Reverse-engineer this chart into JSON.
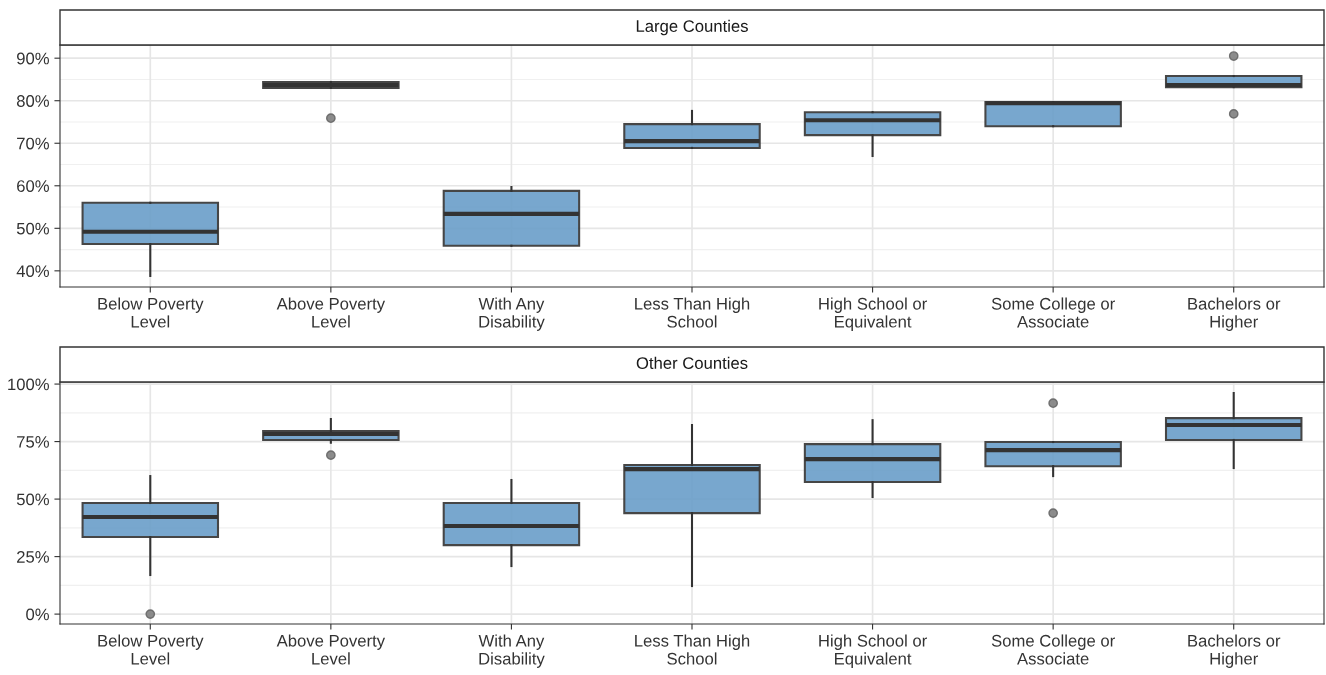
{
  "chart_data": [
    {
      "type": "box",
      "title": "Large Counties",
      "categories": [
        "Below Poverty\nLevel",
        "Above Poverty\nLevel",
        "With Any\nDisability",
        "Less Than High\nSchool",
        "High School or\nEquivalent",
        "Some College or\nAssociate",
        "Bachelors or\nHigher"
      ],
      "series": [
        {
          "color": "#6a9ec9",
          "boxes": [
            {
              "low": 38.8,
              "q1": 46.3,
              "median": 49.2,
              "q3": 56.0,
              "high": 56.0
            },
            {
              "low": 83.0,
              "q1": 83.0,
              "median": 83.7,
              "q3": 84.4,
              "high": 84.4,
              "outliers": [
                75.9
              ]
            },
            {
              "low": 45.9,
              "q1": 45.9,
              "median": 53.4,
              "q3": 58.8,
              "high": 59.7
            },
            {
              "low": 68.9,
              "q1": 68.9,
              "median": 70.5,
              "q3": 74.5,
              "high": 77.6
            },
            {
              "low": 67.0,
              "q1": 71.9,
              "median": 75.4,
              "q3": 77.3,
              "high": 77.3
            },
            {
              "low": 74.0,
              "q1": 74.0,
              "median": 79.4,
              "q3": 79.7,
              "high": 79.7
            },
            {
              "low": 83.2,
              "q1": 83.2,
              "median": 83.7,
              "q3": 85.8,
              "high": 85.8,
              "outliers": [
                90.5,
                76.9
              ]
            }
          ]
        }
      ],
      "ylim": [
        36.2,
        93.1
      ],
      "yticks": [
        {
          "value": 40,
          "label": "40%"
        },
        {
          "value": 50,
          "label": "50%"
        },
        {
          "value": 60,
          "label": "60%"
        },
        {
          "value": 70,
          "label": "70%"
        },
        {
          "value": 80,
          "label": "80%"
        },
        {
          "value": 90,
          "label": "90%"
        }
      ],
      "grid": true
    },
    {
      "type": "box",
      "title": "Other Counties",
      "categories": [
        "Below Poverty\nLevel",
        "Above Poverty\nLevel",
        "With Any\nDisability",
        "Less Than High\nSchool",
        "High School or\nEquivalent",
        "Some College or\nAssociate",
        "Bachelors or\nHigher"
      ],
      "series": [
        {
          "color": "#6a9ec9",
          "boxes": [
            {
              "low": 17.0,
              "q1": 33.5,
              "median": 42.2,
              "q3": 48.3,
              "high": 60.0,
              "outliers": [
                0
              ]
            },
            {
              "low": 74.5,
              "q1": 75.7,
              "median": 78.3,
              "q3": 79.6,
              "high": 84.8,
              "outliers": [
                69.1
              ]
            },
            {
              "low": 20.9,
              "q1": 30.0,
              "median": 38.3,
              "q3": 48.3,
              "high": 58.3
            },
            {
              "low": 12.2,
              "q1": 43.9,
              "median": 63.0,
              "q3": 64.8,
              "high": 82.2
            },
            {
              "low": 50.9,
              "q1": 57.4,
              "median": 67.4,
              "q3": 73.9,
              "high": 84.3
            },
            {
              "low": 60.0,
              "q1": 64.3,
              "median": 71.3,
              "q3": 74.8,
              "high": 74.8,
              "outliers": [
                91.7,
                43.9
              ]
            },
            {
              "low": 63.5,
              "q1": 75.7,
              "median": 82.2,
              "q3": 85.2,
              "high": 96.1
            }
          ]
        }
      ],
      "ylim": [
        -4.3,
        100.9
      ],
      "yticks": [
        {
          "value": 0,
          "label": "0%"
        },
        {
          "value": 25,
          "label": "25%"
        },
        {
          "value": 50,
          "label": "50%"
        },
        {
          "value": 75,
          "label": "75%"
        },
        {
          "value": 100,
          "label": "100%"
        }
      ],
      "grid": true
    }
  ]
}
